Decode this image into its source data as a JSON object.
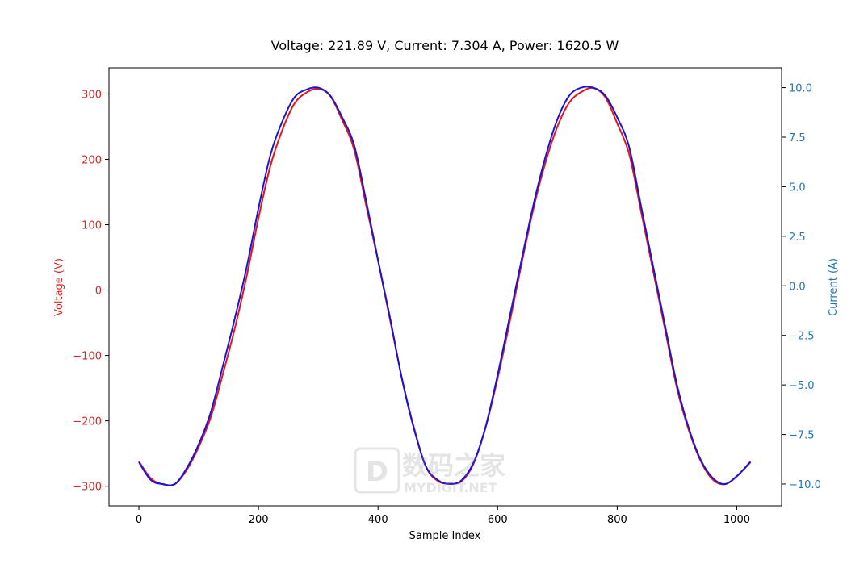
{
  "chart_data": {
    "type": "line",
    "title": "Voltage: 221.89 V, Current: 7.304 A, Power: 1620.5 W",
    "xlabel": "Sample Index",
    "ylabel_left": "Voltage (V)",
    "ylabel_right": "Current (A)",
    "xlim": [
      -50,
      1075
    ],
    "ylim_left": [
      -330,
      340
    ],
    "ylim_right": [
      -11.1,
      11.0
    ],
    "x_ticks": [
      0,
      200,
      400,
      600,
      800,
      1000
    ],
    "x_tick_labels": [
      "0",
      "200",
      "400",
      "600",
      "800",
      "1000"
    ],
    "y_left_ticks": [
      -300,
      -200,
      -100,
      0,
      100,
      200,
      300
    ],
    "y_left_tick_labels": [
      "−300",
      "−200",
      "−100",
      "0",
      "100",
      "200",
      "300"
    ],
    "y_right_ticks": [
      -10.0,
      -7.5,
      -5.0,
      -2.5,
      0.0,
      2.5,
      5.0,
      7.5,
      10.0
    ],
    "y_right_tick_labels": [
      "−10.0",
      "−7.5",
      "−5.0",
      "−2.5",
      "0.0",
      "2.5",
      "5.0",
      "7.5",
      "10.0"
    ],
    "grid": false,
    "colors": {
      "voltage": "#d62728",
      "current": "#1f77b4",
      "voltage_line": "#e8141c",
      "current_line": "#1a14d6"
    },
    "series": [
      {
        "axis": "left",
        "x": [
          0,
          20,
          40,
          60,
          80,
          100,
          120,
          140,
          160,
          180,
          200,
          220,
          240,
          260,
          280,
          300,
          320,
          340,
          360,
          380,
          400,
          420,
          440,
          460,
          480,
          500,
          520,
          540,
          560,
          580,
          600,
          620,
          640,
          660,
          680,
          700,
          720,
          740,
          760,
          780,
          800,
          820,
          840,
          860,
          880,
          900,
          920,
          940,
          960,
          980,
          1000,
          1023
        ],
        "values": [
          -262,
          -288,
          -297,
          -297,
          -275,
          -240,
          -195,
          -130,
          -60,
          20,
          110,
          190,
          245,
          285,
          302,
          308,
          297,
          260,
          215,
          130,
          45,
          -45,
          -135,
          -210,
          -270,
          -292,
          -296,
          -292,
          -265,
          -210,
          -135,
          -50,
          40,
          125,
          195,
          250,
          287,
          303,
          309,
          295,
          255,
          208,
          120,
          30,
          -60,
          -150,
          -215,
          -262,
          -290,
          -297,
          -285,
          -262
        ]
      },
      {
        "axis": "right",
        "x": [
          0,
          20,
          40,
          60,
          80,
          100,
          120,
          140,
          160,
          180,
          200,
          220,
          240,
          260,
          280,
          300,
          320,
          340,
          360,
          380,
          400,
          420,
          440,
          460,
          480,
          500,
          520,
          540,
          560,
          580,
          600,
          620,
          640,
          660,
          680,
          700,
          720,
          740,
          760,
          780,
          800,
          820,
          840,
          860,
          880,
          900,
          920,
          940,
          960,
          980,
          1000,
          1023
        ],
        "values": [
          -8.9,
          -9.8,
          -10.0,
          -10.0,
          -9.2,
          -8.0,
          -6.4,
          -4.1,
          -1.7,
          0.9,
          3.9,
          6.6,
          8.3,
          9.5,
          9.9,
          10.0,
          9.6,
          8.5,
          7.1,
          4.3,
          1.3,
          -1.6,
          -4.7,
          -7.2,
          -9.1,
          -9.8,
          -10.0,
          -9.8,
          -8.9,
          -7.1,
          -4.5,
          -1.6,
          1.3,
          4.1,
          6.5,
          8.4,
          9.6,
          10.0,
          10.0,
          9.6,
          8.5,
          7.0,
          4.0,
          1.0,
          -2.0,
          -5.0,
          -7.2,
          -8.8,
          -9.7,
          -10.0,
          -9.6,
          -8.9
        ]
      }
    ],
    "watermark": {
      "cn": "数码之家",
      "en": "MYDIGIT.NET"
    }
  }
}
